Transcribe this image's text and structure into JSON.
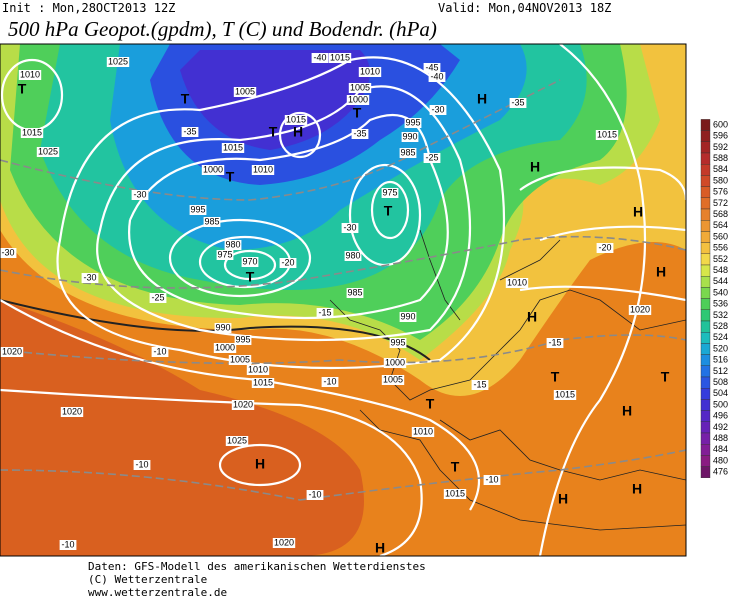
{
  "header": {
    "init": "Init : Mon,28OCT2013 12Z",
    "valid": "Valid: Mon,04NOV2013 18Z",
    "title": "500 hPa Geopot.(gpdm), T (C) und Bodendr. (hPa)"
  },
  "colorbar": [
    {
      "value": 600,
      "color": "#7a1a1a"
    },
    {
      "value": 596,
      "color": "#8f1f1f"
    },
    {
      "value": 592,
      "color": "#a32525"
    },
    {
      "value": 588,
      "color": "#b52c2c"
    },
    {
      "value": 584,
      "color": "#c43a2a"
    },
    {
      "value": 580,
      "color": "#d04a28"
    },
    {
      "value": 576,
      "color": "#d95c26"
    },
    {
      "value": 572,
      "color": "#e06e28"
    },
    {
      "value": 568,
      "color": "#e6812c"
    },
    {
      "value": 564,
      "color": "#ec9632"
    },
    {
      "value": 560,
      "color": "#f0aa38"
    },
    {
      "value": 556,
      "color": "#f3c040"
    },
    {
      "value": 552,
      "color": "#f2d84a"
    },
    {
      "value": 548,
      "color": "#d6e64a"
    },
    {
      "value": 544,
      "color": "#a8e04c"
    },
    {
      "value": 540,
      "color": "#7ad84e"
    },
    {
      "value": 536,
      "color": "#4ece58"
    },
    {
      "value": 532,
      "color": "#2ec874"
    },
    {
      "value": 528,
      "color": "#22c29a"
    },
    {
      "value": 524,
      "color": "#1cbcbc"
    },
    {
      "value": 520,
      "color": "#1aa8d4"
    },
    {
      "value": 516,
      "color": "#1c8ee0"
    },
    {
      "value": 512,
      "color": "#2272e4"
    },
    {
      "value": 508,
      "color": "#2a56e2"
    },
    {
      "value": 504,
      "color": "#343cdc"
    },
    {
      "value": 500,
      "color": "#4230d2"
    },
    {
      "value": 496,
      "color": "#5428c6"
    },
    {
      "value": 492,
      "color": "#6622b8"
    },
    {
      "value": 488,
      "color": "#7620a8"
    },
    {
      "value": 484,
      "color": "#821e96"
    },
    {
      "value": 480,
      "color": "#8a1c82"
    },
    {
      "value": 476,
      "color": "#6e1668"
    }
  ],
  "map_labels": [
    "T",
    "1010",
    "1025",
    "1015",
    "1025",
    "T",
    "1005",
    "T",
    "H",
    "1015",
    "1015",
    "1010",
    "T",
    "1000",
    "985",
    "995",
    "980",
    "975",
    "970",
    "T",
    "-35",
    "-30",
    "-25",
    "-30",
    "-20",
    "-40",
    "1015",
    "1010",
    "1005",
    "1000",
    "T",
    "-35",
    "995",
    "990",
    "985",
    "-25",
    "975",
    "T",
    "-30",
    "980",
    "985",
    "990",
    "995",
    "1000",
    "1005",
    "-15",
    "990",
    "995",
    "1000",
    "1005",
    "1010",
    "1015",
    "1020",
    "1020",
    "1025",
    "H",
    "-10",
    "-10",
    "-10",
    "1020",
    "H",
    "T",
    "1010",
    "T",
    "1015",
    "H",
    "H",
    "H",
    "H",
    "-20",
    "1020",
    "H",
    "H",
    "-15",
    "T",
    "1015",
    "H",
    "T",
    "1010",
    "-15",
    "1015",
    "-45",
    "H",
    "-40",
    "-35",
    "-30",
    "1020",
    "-30",
    "-10",
    "-10",
    "-10"
  ],
  "footer": [
    "Daten: GFS-Modell des amerikanischen Wetterdienstes",
    "(C) Wetterzentrale",
    "www.wetterzentrale.de"
  ]
}
